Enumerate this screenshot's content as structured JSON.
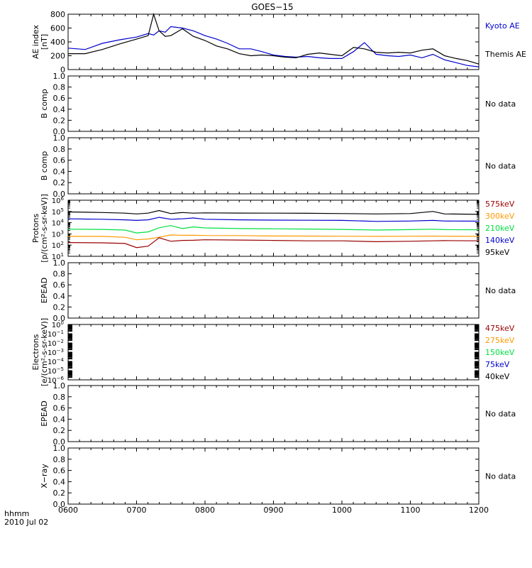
{
  "title": "GOES−15",
  "footer": {
    "line1": "hhmm",
    "line2": "2010 Jul 02"
  },
  "x_tick_labels": [
    "0600",
    "0700",
    "0800",
    "0900",
    "1000",
    "1100",
    "1200"
  ],
  "colors": {
    "black": "#000000",
    "blue": "#0000cc",
    "red": "#990000",
    "orange": "#ff9900",
    "green": "#00e040"
  },
  "chart_data": [
    {
      "type": "line",
      "panel": "AE index",
      "ylabel": [
        "AE index",
        "[nT]"
      ],
      "ylim": [
        0,
        800
      ],
      "yticks": [
        0,
        200,
        400,
        600,
        800
      ],
      "ytick_labels": [
        "0",
        "200",
        "400",
        "600",
        "800"
      ],
      "x_hours": [
        6.0,
        6.25,
        6.5,
        6.75,
        7.0,
        7.17,
        7.25,
        7.33,
        7.42,
        7.5,
        7.67,
        7.83,
        8.0,
        8.17,
        8.33,
        8.5,
        8.67,
        8.83,
        9.0,
        9.17,
        9.33,
        9.5,
        9.67,
        9.83,
        10.0,
        10.17,
        10.33,
        10.5,
        10.67,
        10.83,
        11.0,
        11.17,
        11.33,
        11.5,
        11.67,
        11.83,
        12.0
      ],
      "series": [
        {
          "name": "Kyoto AE",
          "color": "#0000cc",
          "values": [
            310,
            290,
            380,
            430,
            470,
            520,
            500,
            560,
            540,
            620,
            600,
            560,
            490,
            440,
            380,
            300,
            300,
            260,
            210,
            190,
            180,
            190,
            170,
            160,
            160,
            260,
            390,
            220,
            200,
            190,
            210,
            170,
            220,
            140,
            100,
            60,
            40
          ]
        },
        {
          "name": "Themis AE",
          "color": "#000000",
          "values": [
            230,
            230,
            290,
            370,
            440,
            490,
            800,
            560,
            480,
            490,
            590,
            480,
            420,
            340,
            300,
            230,
            200,
            210,
            200,
            180,
            170,
            220,
            240,
            220,
            200,
            320,
            300,
            250,
            240,
            250,
            240,
            280,
            300,
            200,
            160,
            130,
            80
          ]
        }
      ]
    },
    {
      "type": "line",
      "panel": "B comp",
      "ylabel": [
        "B comp"
      ],
      "ylim": [
        0,
        1
      ],
      "ytick_labels": [
        "0.0",
        "0.2",
        "0.4",
        "0.6",
        "0.8",
        "1.0"
      ],
      "series": [],
      "note": "No data"
    },
    {
      "type": "line",
      "panel": "B comp",
      "ylabel": [
        "B comp"
      ],
      "ylim": [
        0,
        1
      ],
      "ytick_labels": [
        "0.0",
        "0.2",
        "0.4",
        "0.6",
        "0.8",
        "1.0"
      ],
      "series": [],
      "note": "No data"
    },
    {
      "type": "line",
      "panel": "Protons",
      "scale": "log",
      "ylabel": [
        "Protons",
        "[p/(cm²-s-sr-keV)]"
      ],
      "ylim": [
        10,
        1000000
      ],
      "yticks": [
        10,
        100,
        1000,
        10000,
        100000,
        1000000
      ],
      "ytick_labels": [
        [
          "10",
          "1"
        ],
        [
          "10",
          "2"
        ],
        [
          "10",
          "3"
        ],
        [
          "10",
          "4"
        ],
        [
          "10",
          "5"
        ],
        [
          "10",
          "6"
        ]
      ],
      "x_hours": [
        6.0,
        6.5,
        6.83,
        7.0,
        7.17,
        7.33,
        7.5,
        7.67,
        7.83,
        8.0,
        8.5,
        9.0,
        9.5,
        10.0,
        10.5,
        11.0,
        11.33,
        11.5,
        12.0
      ],
      "series": [
        {
          "name": "95keV",
          "color": "#000000",
          "values": [
            90000,
            80000,
            70000,
            60000,
            70000,
            120000,
            65000,
            80000,
            70000,
            75000,
            72000,
            70000,
            68000,
            65000,
            60000,
            65000,
            100000,
            60000,
            55000
          ]
        },
        {
          "name": "140keV",
          "color": "#0000cc",
          "values": [
            22000,
            20000,
            18000,
            16000,
            18000,
            30000,
            20000,
            22000,
            26000,
            20000,
            18000,
            17000,
            16500,
            16000,
            13000,
            14000,
            16000,
            14000,
            13500
          ]
        },
        {
          "name": "210keV",
          "color": "#00e040",
          "values": [
            2600,
            2500,
            2200,
            1200,
            1500,
            3500,
            5500,
            3000,
            4200,
            3400,
            3000,
            2800,
            2700,
            2500,
            2200,
            2400,
            2600,
            2400,
            2300
          ]
        },
        {
          "name": "300keV",
          "color": "#ff9900",
          "values": [
            600,
            600,
            500,
            300,
            350,
            500,
            800,
            750,
            760,
            720,
            700,
            650,
            640,
            620,
            600,
            620,
            640,
            620,
            600
          ]
        },
        {
          "name": "575keV",
          "color": "#990000",
          "values": [
            170,
            160,
            140,
            60,
            80,
            450,
            220,
            260,
            270,
            300,
            280,
            260,
            240,
            240,
            200,
            220,
            240,
            250,
            240
          ]
        }
      ],
      "legend_order": [
        "575keV",
        "300keV",
        "210keV",
        "140keV",
        "95keV"
      ]
    },
    {
      "type": "line",
      "panel": "EPEAD",
      "ylabel": [
        "EPEAD"
      ],
      "ylim": [
        0,
        1
      ],
      "ytick_labels": [
        "0.0",
        "0.2",
        "0.4",
        "0.6",
        "0.8",
        "1.0"
      ],
      "series": [],
      "note": "No data"
    },
    {
      "type": "line",
      "panel": "Electrons",
      "scale": "log",
      "ylabel": [
        "Electrons",
        "[e/(cm²-s-sr-keV)]"
      ],
      "ylim": [
        1e-06,
        1
      ],
      "ytick_labels": [
        [
          "10",
          "−6"
        ],
        [
          "10",
          "−5"
        ],
        [
          "10",
          "−4"
        ],
        [
          "10",
          "−3"
        ],
        [
          "10",
          "−2"
        ],
        [
          "10",
          "−1"
        ],
        [
          "10",
          "0"
        ]
      ],
      "series": [
        {
          "name": "475keV",
          "color": "#990000",
          "values": []
        },
        {
          "name": "275keV",
          "color": "#ff9900",
          "values": []
        },
        {
          "name": "150keV",
          "color": "#00e040",
          "values": []
        },
        {
          "name": "75keV",
          "color": "#0000cc",
          "values": []
        },
        {
          "name": "40keV",
          "color": "#000000",
          "values": []
        }
      ],
      "legend_order": [
        "475keV",
        "275keV",
        "150keV",
        "75keV",
        "40keV"
      ]
    },
    {
      "type": "line",
      "panel": "EPEAD",
      "ylabel": [
        "EPEAD"
      ],
      "ylim": [
        0,
        1
      ],
      "ytick_labels": [
        "0.0",
        "0.2",
        "0.4",
        "0.6",
        "0.8",
        "1.0"
      ],
      "series": [],
      "note": "No data"
    },
    {
      "type": "line",
      "panel": "X-ray",
      "ylabel": [
        "X−ray"
      ],
      "ylim": [
        0,
        1
      ],
      "ytick_labels": [
        "0.0",
        "0.2",
        "0.4",
        "0.6",
        "0.8",
        "1.0"
      ],
      "series": [],
      "note": "No data"
    }
  ]
}
